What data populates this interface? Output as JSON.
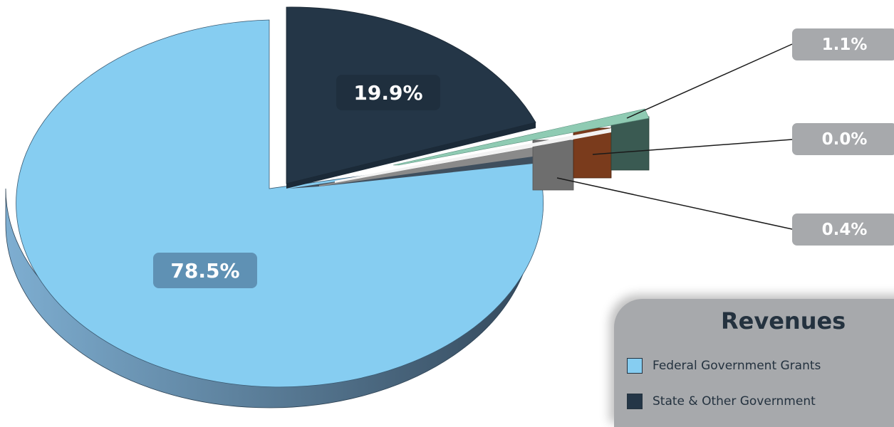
{
  "chart_data": {
    "type": "pie",
    "title": "",
    "slices": [
      {
        "label": "Federal Government Grants",
        "value": 78.5,
        "display": "78.5%",
        "color": "#86cdf1"
      },
      {
        "label": "State & Other Government",
        "value": 19.9,
        "display": "19.9%",
        "color": "#243647"
      },
      {
        "label": "",
        "value": 1.1,
        "display": "1.1%",
        "color": "#8fcbb3"
      },
      {
        "label": "",
        "value": 0.0,
        "display": "0.0%",
        "color": "#7a3b1c"
      },
      {
        "label": "",
        "value": 0.4,
        "display": "0.4%",
        "color": "#6e6e6e"
      }
    ]
  },
  "legend": {
    "title": "Revenues",
    "items": [
      {
        "label": "Federal Government Grants",
        "color": "#86cdf1"
      },
      {
        "label": "State & Other Government",
        "color": "#243647"
      }
    ]
  },
  "colors": {
    "callout_box": "#a7a9ac",
    "side_blue_light": "#7eaed1",
    "side_blue_dark": "#34495c"
  }
}
